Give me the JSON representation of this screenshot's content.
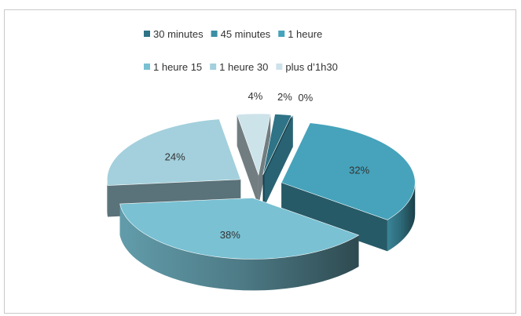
{
  "chart_data": {
    "type": "pie",
    "three_d": true,
    "exploded": true,
    "title": "",
    "legend_position": "top",
    "slices": [
      {
        "label": "30 minutes",
        "value": 2,
        "display": "2%",
        "color": "#2e7386"
      },
      {
        "label": "45 minutes",
        "value": 0,
        "display": "0%",
        "color": "#3b8ea4"
      },
      {
        "label": "1 heure",
        "value": 32,
        "display": "32%",
        "color": "#46a3bb"
      },
      {
        "label": "1 heure 15",
        "value": 38,
        "display": "38%",
        "color": "#79c1d3"
      },
      {
        "label": "1 heure 30",
        "value": 24,
        "display": "24%",
        "color": "#a3d0dc"
      },
      {
        "label": "plus d’1h30",
        "value": 4,
        "display": "4%",
        "color": "#cde3ea"
      }
    ]
  }
}
